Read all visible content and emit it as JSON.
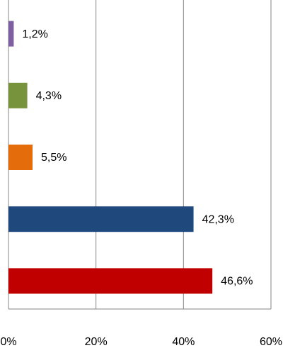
{
  "chart_data": {
    "type": "bar",
    "orientation": "horizontal",
    "categories": [
      null,
      null,
      null,
      null,
      null
    ],
    "values": [
      1.2,
      4.3,
      5.5,
      42.3,
      46.6
    ],
    "value_labels": [
      "1,2%",
      "4,3%",
      "5,5%",
      "42,3%",
      "46,6%"
    ],
    "colors": [
      "#7d60a0",
      "#77933c",
      "#e46c0a",
      "#1f497d",
      "#c00000"
    ],
    "xlim": [
      0,
      60
    ],
    "xticks": [
      {
        "value": 0,
        "label": "0%"
      },
      {
        "value": 20,
        "label": "20%"
      },
      {
        "value": 40,
        "label": "40%"
      },
      {
        "value": 60,
        "label": "60%"
      }
    ],
    "grid": true
  }
}
